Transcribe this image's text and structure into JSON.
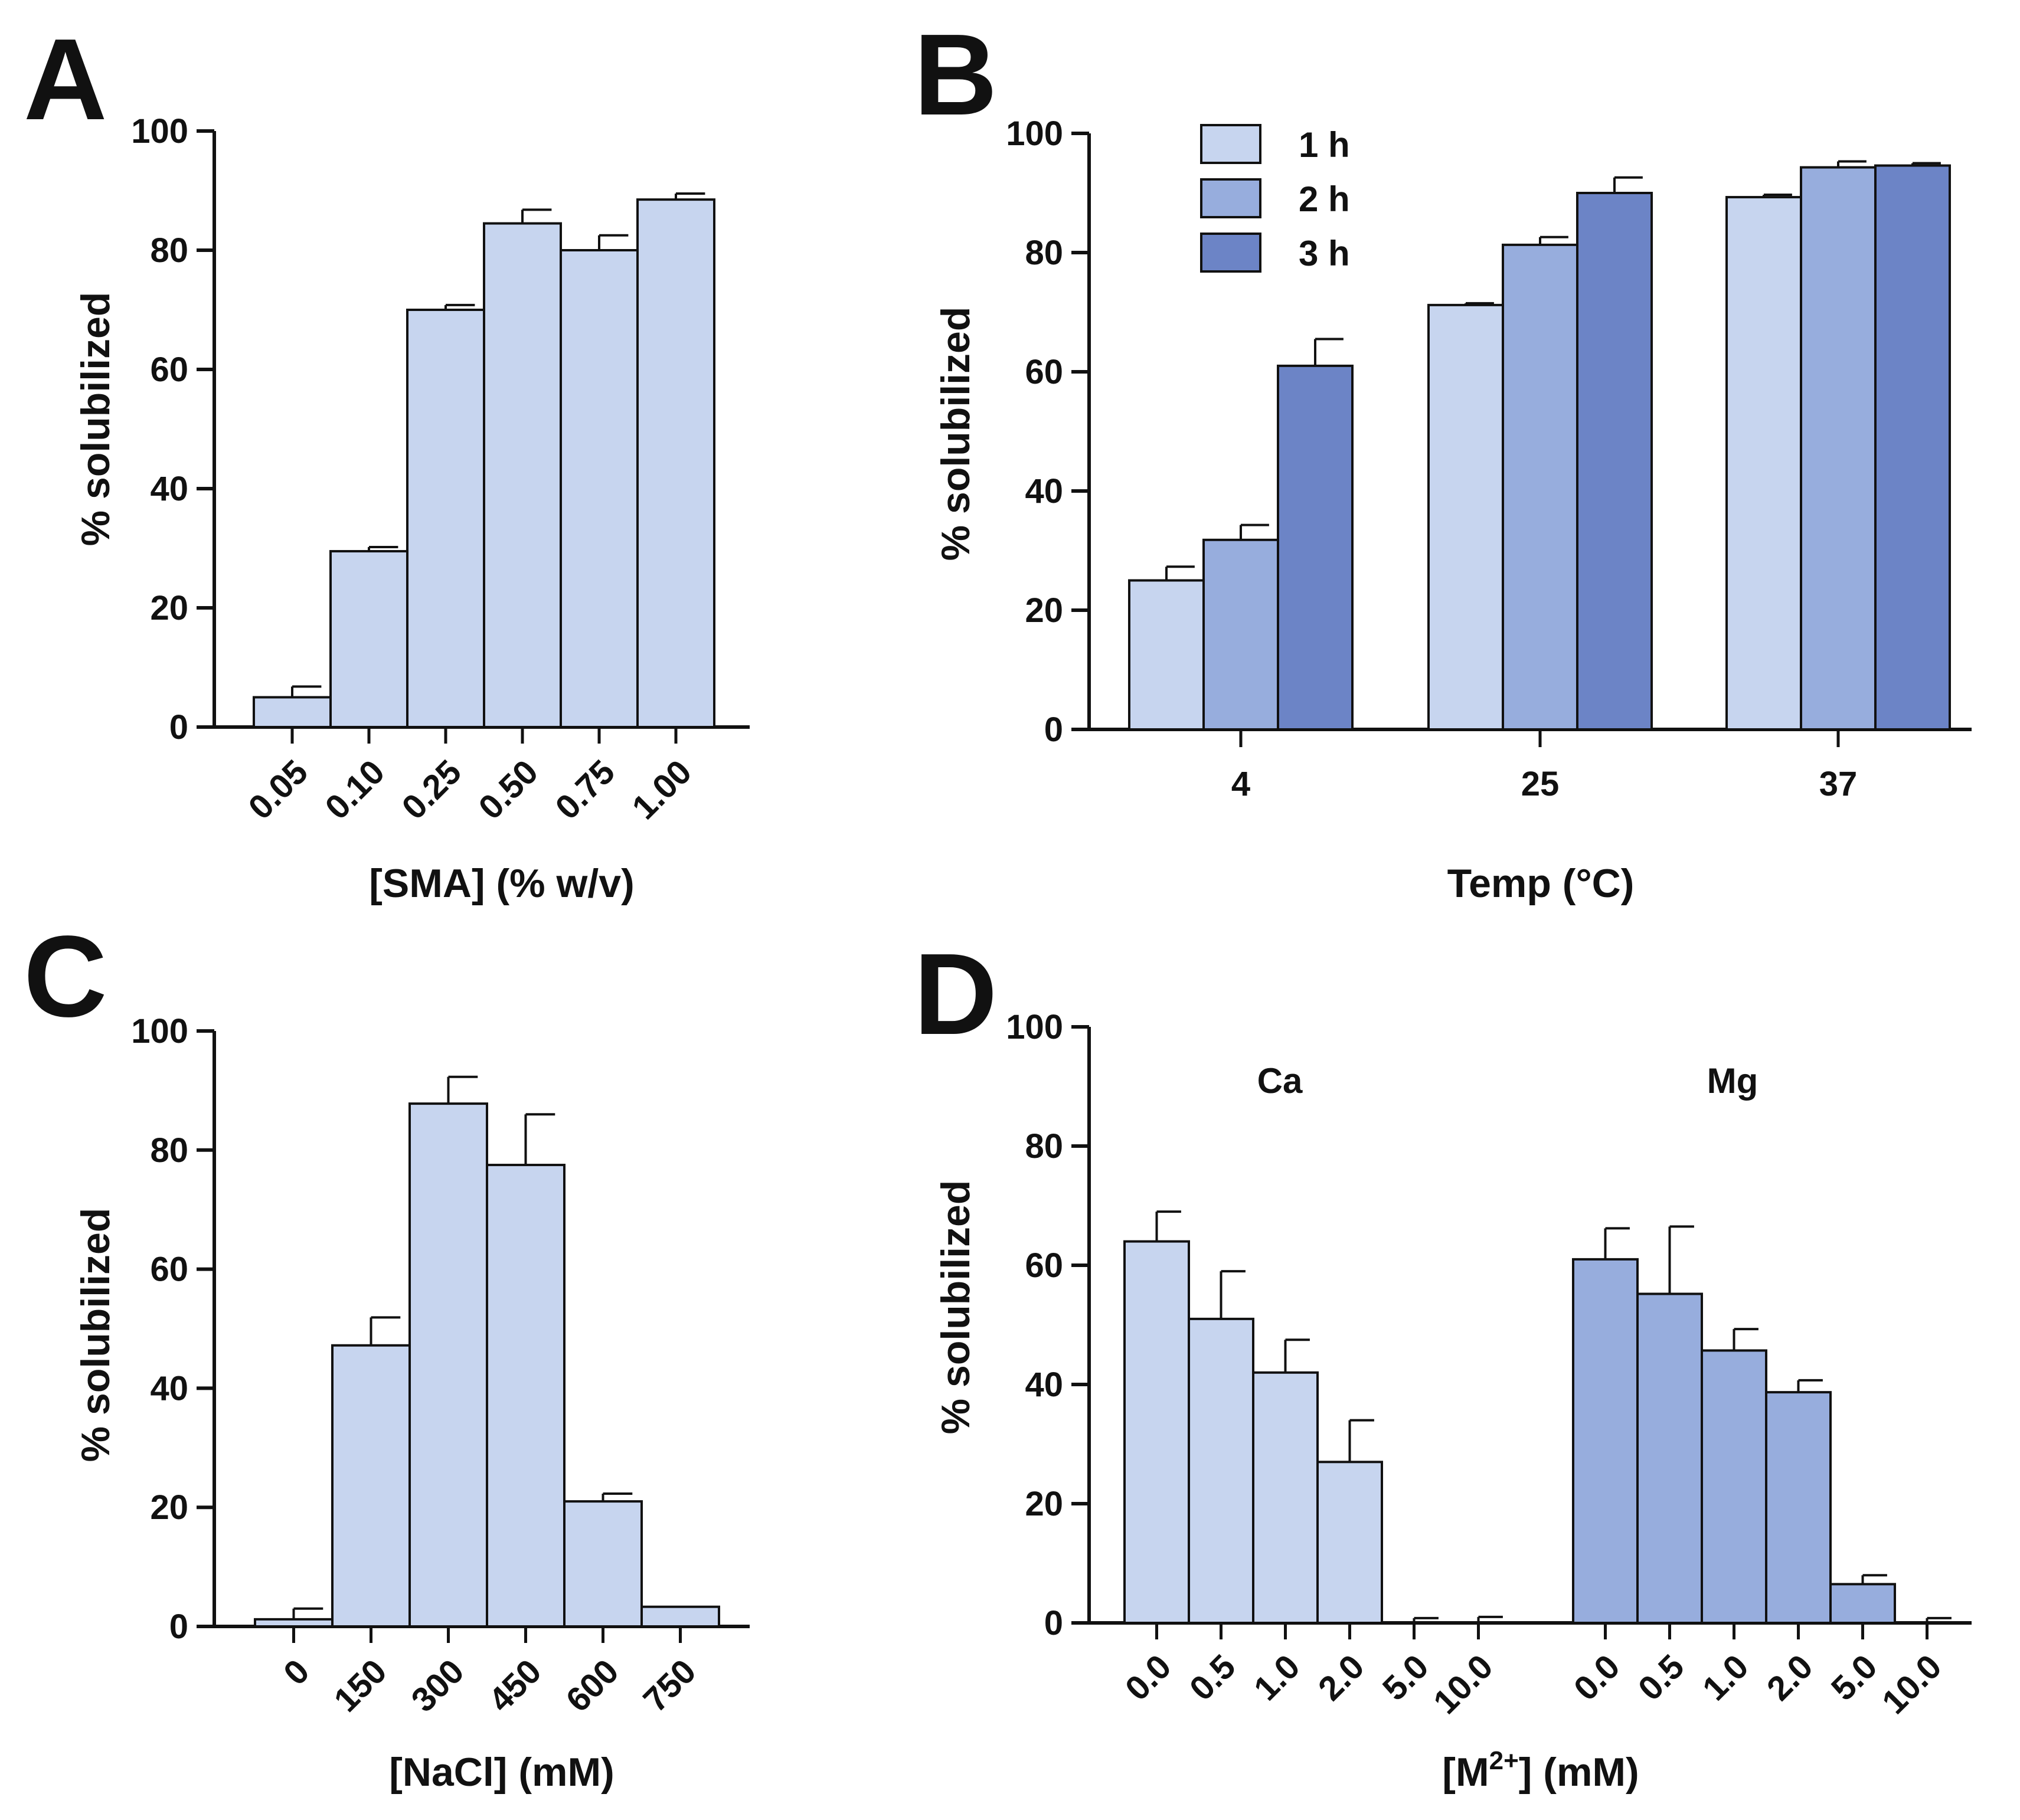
{
  "figure": {
    "panels": [
      "A",
      "B",
      "C",
      "D"
    ]
  },
  "colors": {
    "light": "#c7d5ef",
    "medium": "#97addd",
    "dark": "#6c84c6",
    "ink": "#111111"
  },
  "chart_data": [
    {
      "panel": "A",
      "type": "bar",
      "categories": [
        "0.05",
        "0.10",
        "0.25",
        "0.50",
        "0.75",
        "1.00"
      ],
      "values": [
        5,
        29.5,
        70,
        84.5,
        80,
        88.5
      ],
      "errors": [
        1.8,
        0.7,
        0.8,
        2.3,
        2.5,
        1
      ],
      "xlabel": "[SMA] (% w/v)",
      "ylabel": "% solubilized",
      "ylim": [
        0,
        100
      ],
      "yticks": [
        0,
        20,
        40,
        60,
        80,
        100
      ]
    },
    {
      "panel": "B",
      "type": "bar",
      "categories": [
        "4",
        "25",
        "37"
      ],
      "series": [
        {
          "name": "1 h",
          "values": [
            25,
            71.2,
            89.3
          ],
          "errors": [
            2.3,
            0.3,
            0.4
          ]
        },
        {
          "name": "2 h",
          "values": [
            31.8,
            81.3,
            94.3
          ],
          "errors": [
            2.5,
            1.3,
            1
          ]
        },
        {
          "name": "3 h",
          "values": [
            61,
            90,
            94.6
          ],
          "errors": [
            4.5,
            2.6,
            0.4
          ]
        }
      ],
      "xlabel": "Temp (°C)",
      "ylabel": "% solubilized",
      "ylim": [
        0,
        100
      ],
      "yticks": [
        0,
        20,
        40,
        60,
        80,
        100
      ],
      "legend": "top-left"
    },
    {
      "panel": "C",
      "type": "bar",
      "categories": [
        "0",
        "150",
        "300",
        "450",
        "600",
        "750"
      ],
      "values": [
        1.2,
        47.2,
        87.8,
        77.5,
        21,
        3.3
      ],
      "errors": [
        1.8,
        4.7,
        4.5,
        8.5,
        1.3,
        0
      ],
      "xlabel": "[NaCl] (mM)",
      "ylabel": "% solubilized",
      "ylim": [
        0,
        100
      ],
      "yticks": [
        0,
        20,
        40,
        60,
        80,
        100
      ]
    },
    {
      "panel": "D",
      "type": "bar",
      "groups": [
        {
          "label": "Ca",
          "categories": [
            "0.0",
            "0.5",
            "1.0",
            "2.0",
            "5.0",
            "10.0"
          ],
          "values": [
            64,
            51,
            42,
            27,
            0,
            0
          ],
          "errors": [
            5,
            8,
            5.5,
            7,
            0.8,
            1
          ]
        },
        {
          "label": "Mg",
          "categories": [
            "0.0",
            "0.5",
            "1.0",
            "2.0",
            "5.0",
            "10.0"
          ],
          "values": [
            61,
            55.2,
            45.7,
            38.7,
            6.5,
            0
          ],
          "errors": [
            5.2,
            11.3,
            3.6,
            2,
            1.5,
            0.8
          ]
        }
      ],
      "xlabel_main": "[M",
      "xlabel_sup": "2+",
      "xlabel_tail": "] (mM)",
      "ylabel": "% solubilized",
      "ylim": [
        0,
        100
      ],
      "yticks": [
        0,
        20,
        40,
        60,
        80,
        100
      ]
    }
  ]
}
